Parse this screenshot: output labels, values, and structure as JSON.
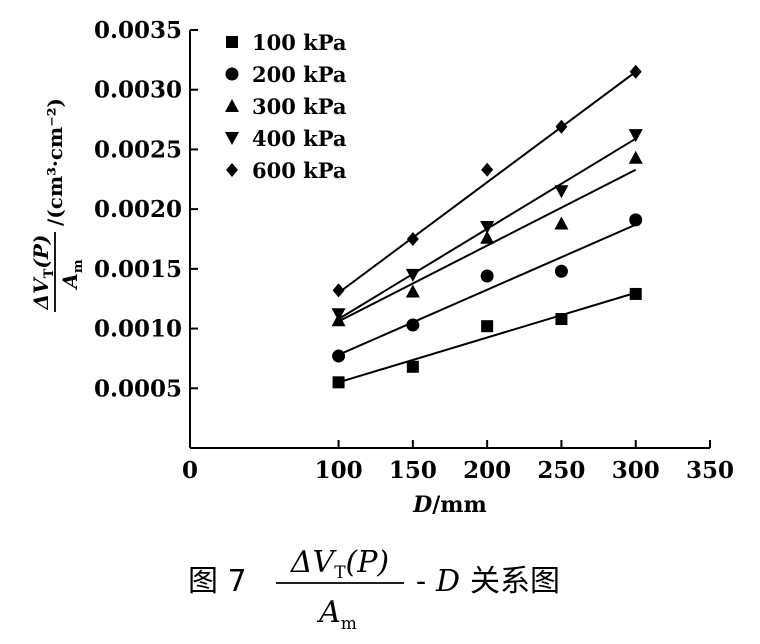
{
  "chart_data": {
    "type": "scatter",
    "title": "",
    "xlabel_var": "D",
    "xlabel_unit": "/mm",
    "ylabel_num_delta": "ΔV",
    "ylabel_num_sub": "T",
    "ylabel_num_arg": "(P)",
    "ylabel_den": "A",
    "ylabel_den_sub": "m",
    "ylabel_unit": "/(cm³·cm⁻²)",
    "xlim": [
      0,
      350
    ],
    "ylim": [
      0,
      0.0035
    ],
    "xticks": [
      0,
      100,
      150,
      200,
      250,
      300,
      350
    ],
    "xtick_labels": [
      "0",
      "100",
      "150",
      "200",
      "250",
      "300",
      "350"
    ],
    "yticks": [
      0.0005,
      0.001,
      0.0015,
      0.002,
      0.0025,
      0.003,
      0.0035
    ],
    "ytick_labels": [
      "0.0005",
      "0.0010",
      "0.0015",
      "0.0020",
      "0.0025",
      "0.0030",
      "0.0035"
    ],
    "legend_position": "top-left",
    "x": [
      100,
      150,
      200,
      250,
      300
    ],
    "series": [
      {
        "name": "100 kPa",
        "marker": "square",
        "values": [
          0.00055,
          0.00068,
          0.00102,
          0.00108,
          0.00129
        ],
        "fit": [
          0.00055,
          0.0013
        ]
      },
      {
        "name": "200 kPa",
        "marker": "circle",
        "values": [
          0.00077,
          0.00103,
          0.00144,
          0.00148,
          0.00191
        ],
        "fit": [
          0.00078,
          0.00187
        ]
      },
      {
        "name": "300 kPa",
        "marker": "triangle-up",
        "values": [
          0.00107,
          0.00131,
          0.00176,
          0.00188,
          0.00243
        ],
        "fit": [
          0.00106,
          0.00233
        ]
      },
      {
        "name": "400 kPa",
        "marker": "triangle-down",
        "values": [
          0.00112,
          0.00145,
          0.00185,
          0.00215,
          0.00262
        ],
        "fit": [
          0.00108,
          0.00259
        ]
      },
      {
        "name": "600 kPa",
        "marker": "diamond",
        "values": [
          0.00132,
          0.00175,
          0.00233,
          0.00269,
          0.00315
        ],
        "fit": [
          0.0013,
          0.00315
        ]
      }
    ]
  },
  "caption": {
    "prefix": "图 7",
    "num_delta": "ΔV",
    "num_sub": "T",
    "num_arg": "(P)",
    "den": "A",
    "den_sub": "m",
    "suffix_dash": "-",
    "suffix_var": "D",
    "suffix_text": "关系图"
  }
}
